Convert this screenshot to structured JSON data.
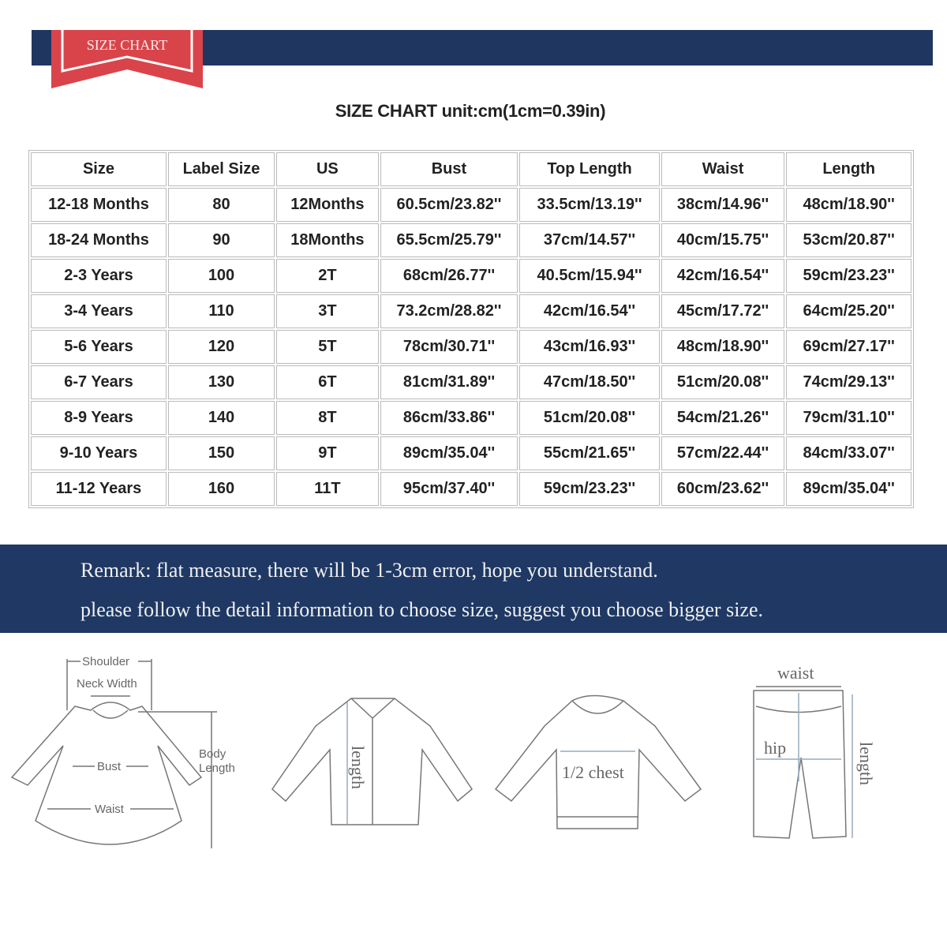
{
  "header": {
    "badge": "SIZE CHART",
    "bar_color": "#1f3660",
    "ribbon_color": "#d9444a"
  },
  "title": "SIZE CHART unit:cm(1cm=0.39in)",
  "table": {
    "columns": [
      "Size",
      "Label Size",
      "US",
      "Bust",
      "Top Length",
      "Waist",
      "Length"
    ],
    "rows": [
      [
        "12-18 Months",
        "80",
        "12Months",
        "60.5cm/23.82''",
        "33.5cm/13.19''",
        "38cm/14.96''",
        "48cm/18.90''"
      ],
      [
        "18-24 Months",
        "90",
        "18Months",
        "65.5cm/25.79''",
        "37cm/14.57''",
        "40cm/15.75''",
        "53cm/20.87''"
      ],
      [
        "2-3 Years",
        "100",
        "2T",
        "68cm/26.77''",
        "40.5cm/15.94''",
        "42cm/16.54''",
        "59cm/23.23''"
      ],
      [
        "3-4 Years",
        "110",
        "3T",
        "73.2cm/28.82''",
        "42cm/16.54''",
        "45cm/17.72''",
        "64cm/25.20''"
      ],
      [
        "5-6 Years",
        "120",
        "5T",
        "78cm/30.71''",
        "43cm/16.93''",
        "48cm/18.90''",
        "69cm/27.17''"
      ],
      [
        "6-7 Years",
        "130",
        "6T",
        "81cm/31.89''",
        "47cm/18.50''",
        "51cm/20.08''",
        "74cm/29.13''"
      ],
      [
        "8-9 Years",
        "140",
        "8T",
        "86cm/33.86''",
        "51cm/20.08''",
        "54cm/21.26''",
        "79cm/31.10''"
      ],
      [
        "9-10 Years",
        "150",
        "9T",
        "89cm/35.04''",
        "55cm/21.65''",
        "57cm/22.44''",
        "84cm/33.07''"
      ],
      [
        "11-12 Years",
        "160",
        "11T",
        "95cm/37.40''",
        "59cm/23.23''",
        "60cm/23.62''",
        "89cm/35.04''"
      ]
    ]
  },
  "remark": {
    "line1": "Remark: flat measure, there will be 1-3cm error, hope you understand.",
    "line2": "please follow the detail information to choose size, suggest you choose bigger size."
  },
  "diagrams": {
    "dress": {
      "shoulder": "Shoulder",
      "neck": "Neck Width",
      "bust": "Bust",
      "waist": "Waist",
      "body1": "Body",
      "body2": "Length"
    },
    "shirt": {
      "length": "length"
    },
    "sweater": {
      "chest": "1/2 chest"
    },
    "pants": {
      "waist": "waist",
      "hip": "hip",
      "length": "length"
    }
  }
}
